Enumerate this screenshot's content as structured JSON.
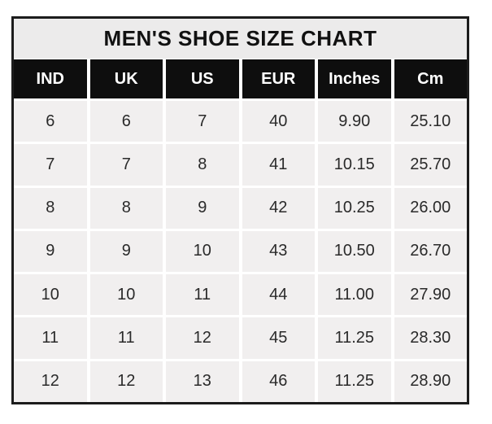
{
  "page_title": "MEN'S SHOE SIZE CHART",
  "chart_data": {
    "type": "table",
    "title": "MEN'S SHOE SIZE CHART",
    "columns": [
      "IND",
      "UK",
      "US",
      "EUR",
      "Inches",
      "Cm"
    ],
    "rows": [
      [
        "6",
        "6",
        "7",
        "40",
        "9.90",
        "25.10"
      ],
      [
        "7",
        "7",
        "8",
        "41",
        "10.15",
        "25.70"
      ],
      [
        "8",
        "8",
        "9",
        "42",
        "10.25",
        "26.00"
      ],
      [
        "9",
        "9",
        "10",
        "43",
        "10.50",
        "26.70"
      ],
      [
        "10",
        "10",
        "11",
        "44",
        "11.00",
        "27.90"
      ],
      [
        "11",
        "11",
        "12",
        "45",
        "11.25",
        "28.30"
      ],
      [
        "12",
        "12",
        "13",
        "46",
        "11.25",
        "28.90"
      ]
    ],
    "layout": {
      "legend": "none",
      "grid": "white-gutters-between-cells",
      "header_style": "black-band-white-text",
      "title_position": "top-center"
    }
  },
  "colors": {
    "border": "#1c1c1c",
    "title_bg": "#ecebeb",
    "header_bg": "#0e0e0e",
    "header_text": "#ffffff",
    "cell_bg": "#f1efef",
    "text": "#2a2a2a"
  }
}
